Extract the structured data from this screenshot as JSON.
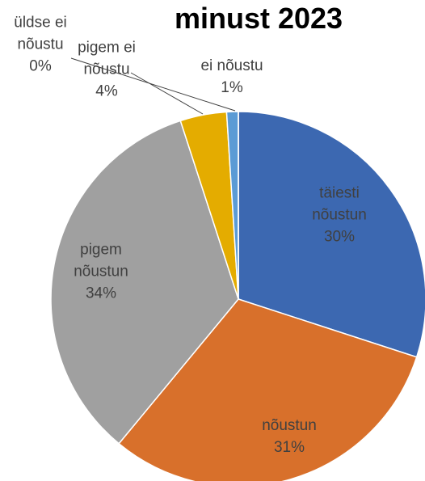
{
  "chart_data": {
    "type": "pie",
    "title": "minust 2023",
    "categories": [
      "täiesti nõustun",
      "nõustun",
      "pigem nõustun",
      "pigem ei nõustu",
      "ei nõustu",
      "üldse ei nõustu"
    ],
    "values": [
      30,
      31,
      34,
      4,
      1,
      0
    ],
    "value_labels": [
      "30%",
      "31%",
      "34%",
      "4%",
      "1%",
      "0%"
    ],
    "colors": [
      "#3c68b1",
      "#d8702b",
      "#a0a0a0",
      "#e4ac00",
      "#5b9bd5",
      "#264478"
    ]
  }
}
